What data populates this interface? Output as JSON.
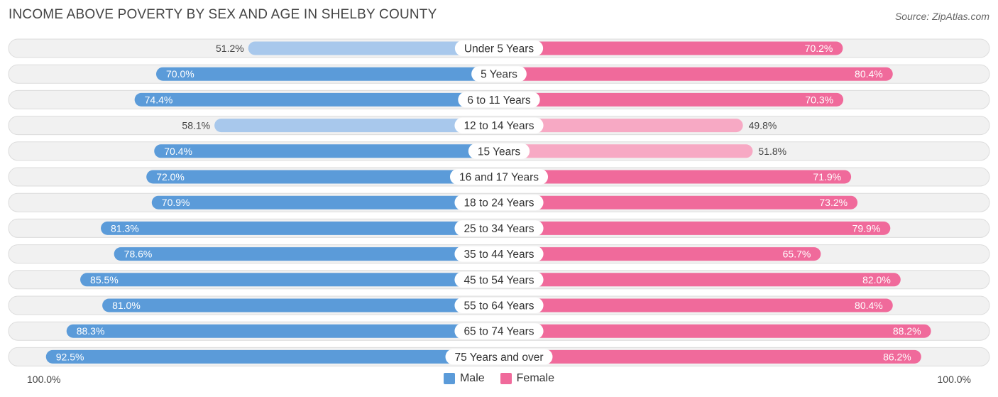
{
  "title": "INCOME ABOVE POVERTY BY SEX AND AGE IN SHELBY COUNTY",
  "source": "Source: ZipAtlas.com",
  "axis": {
    "left_label": "100.0%",
    "right_label": "100.0%"
  },
  "legend": {
    "male_label": "Male",
    "female_label": "Female"
  },
  "colors": {
    "male_strong": "#5b9bd9",
    "male_light": "#a8c8ec",
    "female_strong": "#f06a9b",
    "female_light": "#f7a9c4",
    "row_bg": "#f1f1f1",
    "row_border": "#dcdcdc"
  },
  "chart_data": {
    "type": "bar",
    "orientation": "horizontal-diverging",
    "title": "INCOME ABOVE POVERTY BY SEX AND AGE IN SHELBY COUNTY",
    "xlim": [
      0,
      100
    ],
    "categories": [
      "Under 5 Years",
      "5 Years",
      "6 to 11 Years",
      "12 to 14 Years",
      "15 Years",
      "16 and 17 Years",
      "18 to 24 Years",
      "25 to 34 Years",
      "35 to 44 Years",
      "45 to 54 Years",
      "55 to 64 Years",
      "65 to 74 Years",
      "75 Years and over"
    ],
    "series": [
      {
        "name": "Male",
        "values": [
          51.2,
          70.0,
          74.4,
          58.1,
          70.4,
          72.0,
          70.9,
          81.3,
          78.6,
          85.5,
          81.0,
          88.3,
          92.5
        ],
        "labels": [
          "51.2%",
          "70.0%",
          "74.4%",
          "58.1%",
          "70.4%",
          "72.0%",
          "70.9%",
          "81.3%",
          "78.6%",
          "85.5%",
          "81.0%",
          "88.3%",
          "92.5%"
        ]
      },
      {
        "name": "Female",
        "values": [
          70.2,
          80.4,
          70.3,
          49.8,
          51.8,
          71.9,
          73.2,
          79.9,
          65.7,
          82.0,
          80.4,
          88.2,
          86.2
        ],
        "labels": [
          "70.2%",
          "80.4%",
          "70.3%",
          "49.8%",
          "51.8%",
          "71.9%",
          "73.2%",
          "79.9%",
          "65.7%",
          "82.0%",
          "80.4%",
          "88.2%",
          "86.2%"
        ]
      }
    ]
  }
}
